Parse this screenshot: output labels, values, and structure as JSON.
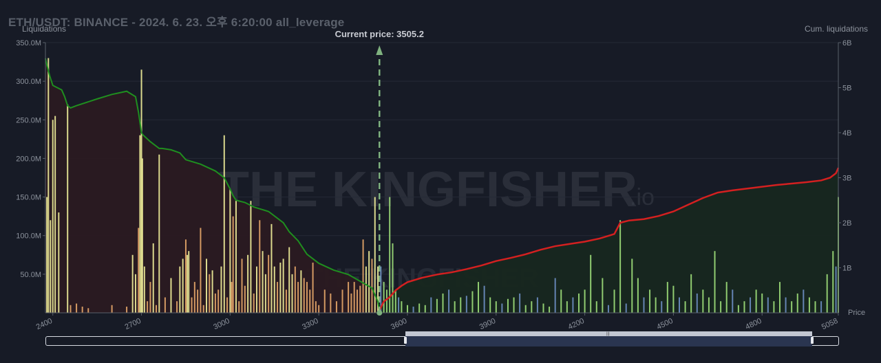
{
  "chart_data": {
    "type": "bar",
    "title": "ETH/USDT: BINANCE - 2024. 6. 23. 오후 6:20:00 all_leverage",
    "ylabel_left": "Liquidations",
    "ylabel_right": "Cum. liquidations",
    "xlabel": "Price",
    "xlim": [
      2375,
      5058
    ],
    "ylim_left": [
      0,
      350
    ],
    "ylim_right": [
      0,
      6
    ],
    "y_left_ticks": [
      "50.0M",
      "100.0M",
      "150.0M",
      "200.0M",
      "250.0M",
      "300.0M",
      "350.0M"
    ],
    "y_left_tick_values": [
      50,
      100,
      150,
      200,
      250,
      300,
      350
    ],
    "y_right_ticks": [
      "1B",
      "2B",
      "3B",
      "4B",
      "5B",
      "6B"
    ],
    "y_right_tick_values": [
      1,
      2,
      3,
      4,
      5,
      6
    ],
    "x_ticks": [
      "2400",
      "2700",
      "3000",
      "3300",
      "3600",
      "3900",
      "4200",
      "4500",
      "4800",
      "5058"
    ],
    "x_tick_values": [
      2400,
      2700,
      3000,
      3300,
      3600,
      3900,
      4200,
      4500,
      4800,
      5058
    ],
    "current_price": 3505.2,
    "current_price_label": "Current price: 3505.2",
    "watermark": "THE KINGFISHER",
    "watermark_suffix": ".io",
    "colors": {
      "background": "#171b26",
      "short_line": "#1f8f1f",
      "long_line": "#d42020",
      "short_area": "#2a1a21",
      "long_area": "#17271f",
      "bar_high": "#f1f09a",
      "bar_mid": "#e8a86a",
      "bar_low": "#6e8fc4",
      "bar_green": "#9fe07a",
      "price_marker": "#7fb27f"
    },
    "series": [
      {
        "name": "cum_short_liquidations",
        "axis": "right",
        "x": [
          2375,
          2380,
          2390,
          2400,
          2430,
          2440,
          2450,
          2460,
          2480,
          2550,
          2600,
          2650,
          2680,
          2690,
          2700,
          2705,
          2730,
          2760,
          2770,
          2800,
          2830,
          2850,
          2900,
          2950,
          2980,
          3000,
          3010,
          3020,
          3050,
          3080,
          3130,
          3160,
          3180,
          3200,
          3230,
          3260,
          3300,
          3350,
          3400,
          3440,
          3480,
          3500,
          3505
        ],
        "y": [
          5.65,
          5.5,
          5.25,
          5.05,
          4.95,
          4.8,
          4.6,
          4.55,
          4.6,
          4.75,
          4.85,
          4.92,
          4.8,
          4.45,
          4.0,
          3.95,
          3.8,
          3.65,
          3.65,
          3.62,
          3.55,
          3.4,
          3.3,
          3.15,
          3.0,
          2.75,
          2.6,
          2.5,
          2.45,
          2.35,
          2.25,
          2.1,
          2.0,
          1.8,
          1.6,
          1.3,
          1.1,
          0.95,
          0.85,
          0.7,
          0.55,
          0.25,
          0.05
        ]
      },
      {
        "name": "cum_long_liquidations",
        "axis": "right",
        "x": [
          3505,
          3520,
          3540,
          3560,
          3580,
          3600,
          3650,
          3700,
          3750,
          3800,
          3850,
          3900,
          3950,
          4000,
          4050,
          4100,
          4150,
          4200,
          4250,
          4300,
          4320,
          4350,
          4400,
          4450,
          4500,
          4550,
          4600,
          4650,
          4700,
          4750,
          4800,
          4850,
          4900,
          4950,
          5000,
          5030,
          5050,
          5058
        ],
        "y": [
          0.05,
          0.25,
          0.35,
          0.5,
          0.6,
          0.68,
          0.78,
          0.85,
          0.9,
          0.97,
          1.05,
          1.15,
          1.22,
          1.3,
          1.4,
          1.48,
          1.53,
          1.58,
          1.65,
          1.75,
          2.0,
          2.05,
          2.08,
          2.15,
          2.25,
          2.4,
          2.55,
          2.67,
          2.72,
          2.76,
          2.8,
          2.84,
          2.87,
          2.9,
          2.94,
          3.0,
          3.1,
          3.22
        ]
      },
      {
        "name": "liquidations_below_price",
        "axis": "left",
        "x": [
          2380,
          2385,
          2392,
          2400,
          2408,
          2420,
          2450,
          2460,
          2480,
          2500,
          2520,
          2600,
          2650,
          2670,
          2680,
          2690,
          2695,
          2700,
          2703,
          2710,
          2720,
          2730,
          2740,
          2750,
          2760,
          2780,
          2800,
          2820,
          2830,
          2840,
          2850,
          2855,
          2860,
          2870,
          2880,
          2890,
          2900,
          2910,
          2920,
          2930,
          2940,
          2950,
          2960,
          2970,
          2980,
          2990,
          3000,
          3005,
          3010,
          3020,
          3030,
          3040,
          3050,
          3060,
          3070,
          3080,
          3090,
          3100,
          3110,
          3120,
          3130,
          3140,
          3150,
          3160,
          3170,
          3180,
          3190,
          3200,
          3210,
          3220,
          3230,
          3240,
          3250,
          3260,
          3270,
          3280,
          3290,
          3300,
          3320,
          3340,
          3360,
          3380,
          3400,
          3410,
          3420,
          3430,
          3440,
          3450,
          3460,
          3470,
          3480,
          3490,
          3500
        ],
        "y": [
          150,
          330,
          120,
          250,
          255,
          130,
          270,
          10,
          12,
          8,
          6,
          10,
          8,
          75,
          50,
          110,
          230,
          315,
          200,
          60,
          15,
          40,
          90,
          10,
          205,
          20,
          45,
          15,
          60,
          70,
          95,
          75,
          80,
          20,
          40,
          30,
          110,
          10,
          70,
          50,
          55,
          25,
          30,
          60,
          230,
          20,
          160,
          40,
          125,
          145,
          15,
          70,
          35,
          75,
          145,
          25,
          60,
          120,
          80,
          50,
          75,
          115,
          60,
          40,
          65,
          70,
          30,
          85,
          50,
          60,
          40,
          55,
          45,
          40,
          30,
          65,
          15,
          10,
          30,
          25,
          15,
          30,
          40,
          25,
          40,
          30,
          35,
          95,
          60,
          80,
          70,
          150,
          60
        ]
      },
      {
        "name": "liquidations_above_price",
        "axis": "left",
        "x": [
          3510,
          3520,
          3530,
          3540,
          3550,
          3560,
          3570,
          3580,
          3600,
          3620,
          3640,
          3660,
          3680,
          3700,
          3720,
          3740,
          3760,
          3780,
          3800,
          3820,
          3840,
          3860,
          3880,
          3900,
          3920,
          3940,
          3960,
          3980,
          4000,
          4020,
          4040,
          4060,
          4080,
          4100,
          4120,
          4140,
          4160,
          4180,
          4200,
          4220,
          4240,
          4260,
          4280,
          4300,
          4320,
          4340,
          4360,
          4380,
          4400,
          4420,
          4440,
          4460,
          4480,
          4500,
          4520,
          4540,
          4560,
          4580,
          4600,
          4620,
          4640,
          4660,
          4680,
          4700,
          4720,
          4740,
          4760,
          4780,
          4800,
          4820,
          4840,
          4860,
          4880,
          4900,
          4920,
          4940,
          4960,
          4980,
          5000,
          5020,
          5040,
          5050,
          5058
        ],
        "y": [
          60,
          40,
          30,
          150,
          90,
          30,
          20,
          15,
          10,
          8,
          12,
          10,
          20,
          18,
          25,
          30,
          15,
          20,
          22,
          28,
          40,
          35,
          20,
          15,
          12,
          18,
          20,
          25,
          10,
          15,
          20,
          12,
          8,
          45,
          30,
          15,
          20,
          25,
          30,
          75,
          15,
          45,
          10,
          30,
          120,
          12,
          70,
          45,
          20,
          30,
          20,
          15,
          40,
          35,
          20,
          15,
          50,
          25,
          30,
          20,
          80,
          15,
          40,
          30,
          10,
          15,
          20,
          30,
          25,
          20,
          15,
          40,
          20,
          15,
          25,
          30,
          20,
          15,
          15,
          50,
          80,
          60,
          150
        ]
      }
    ]
  }
}
